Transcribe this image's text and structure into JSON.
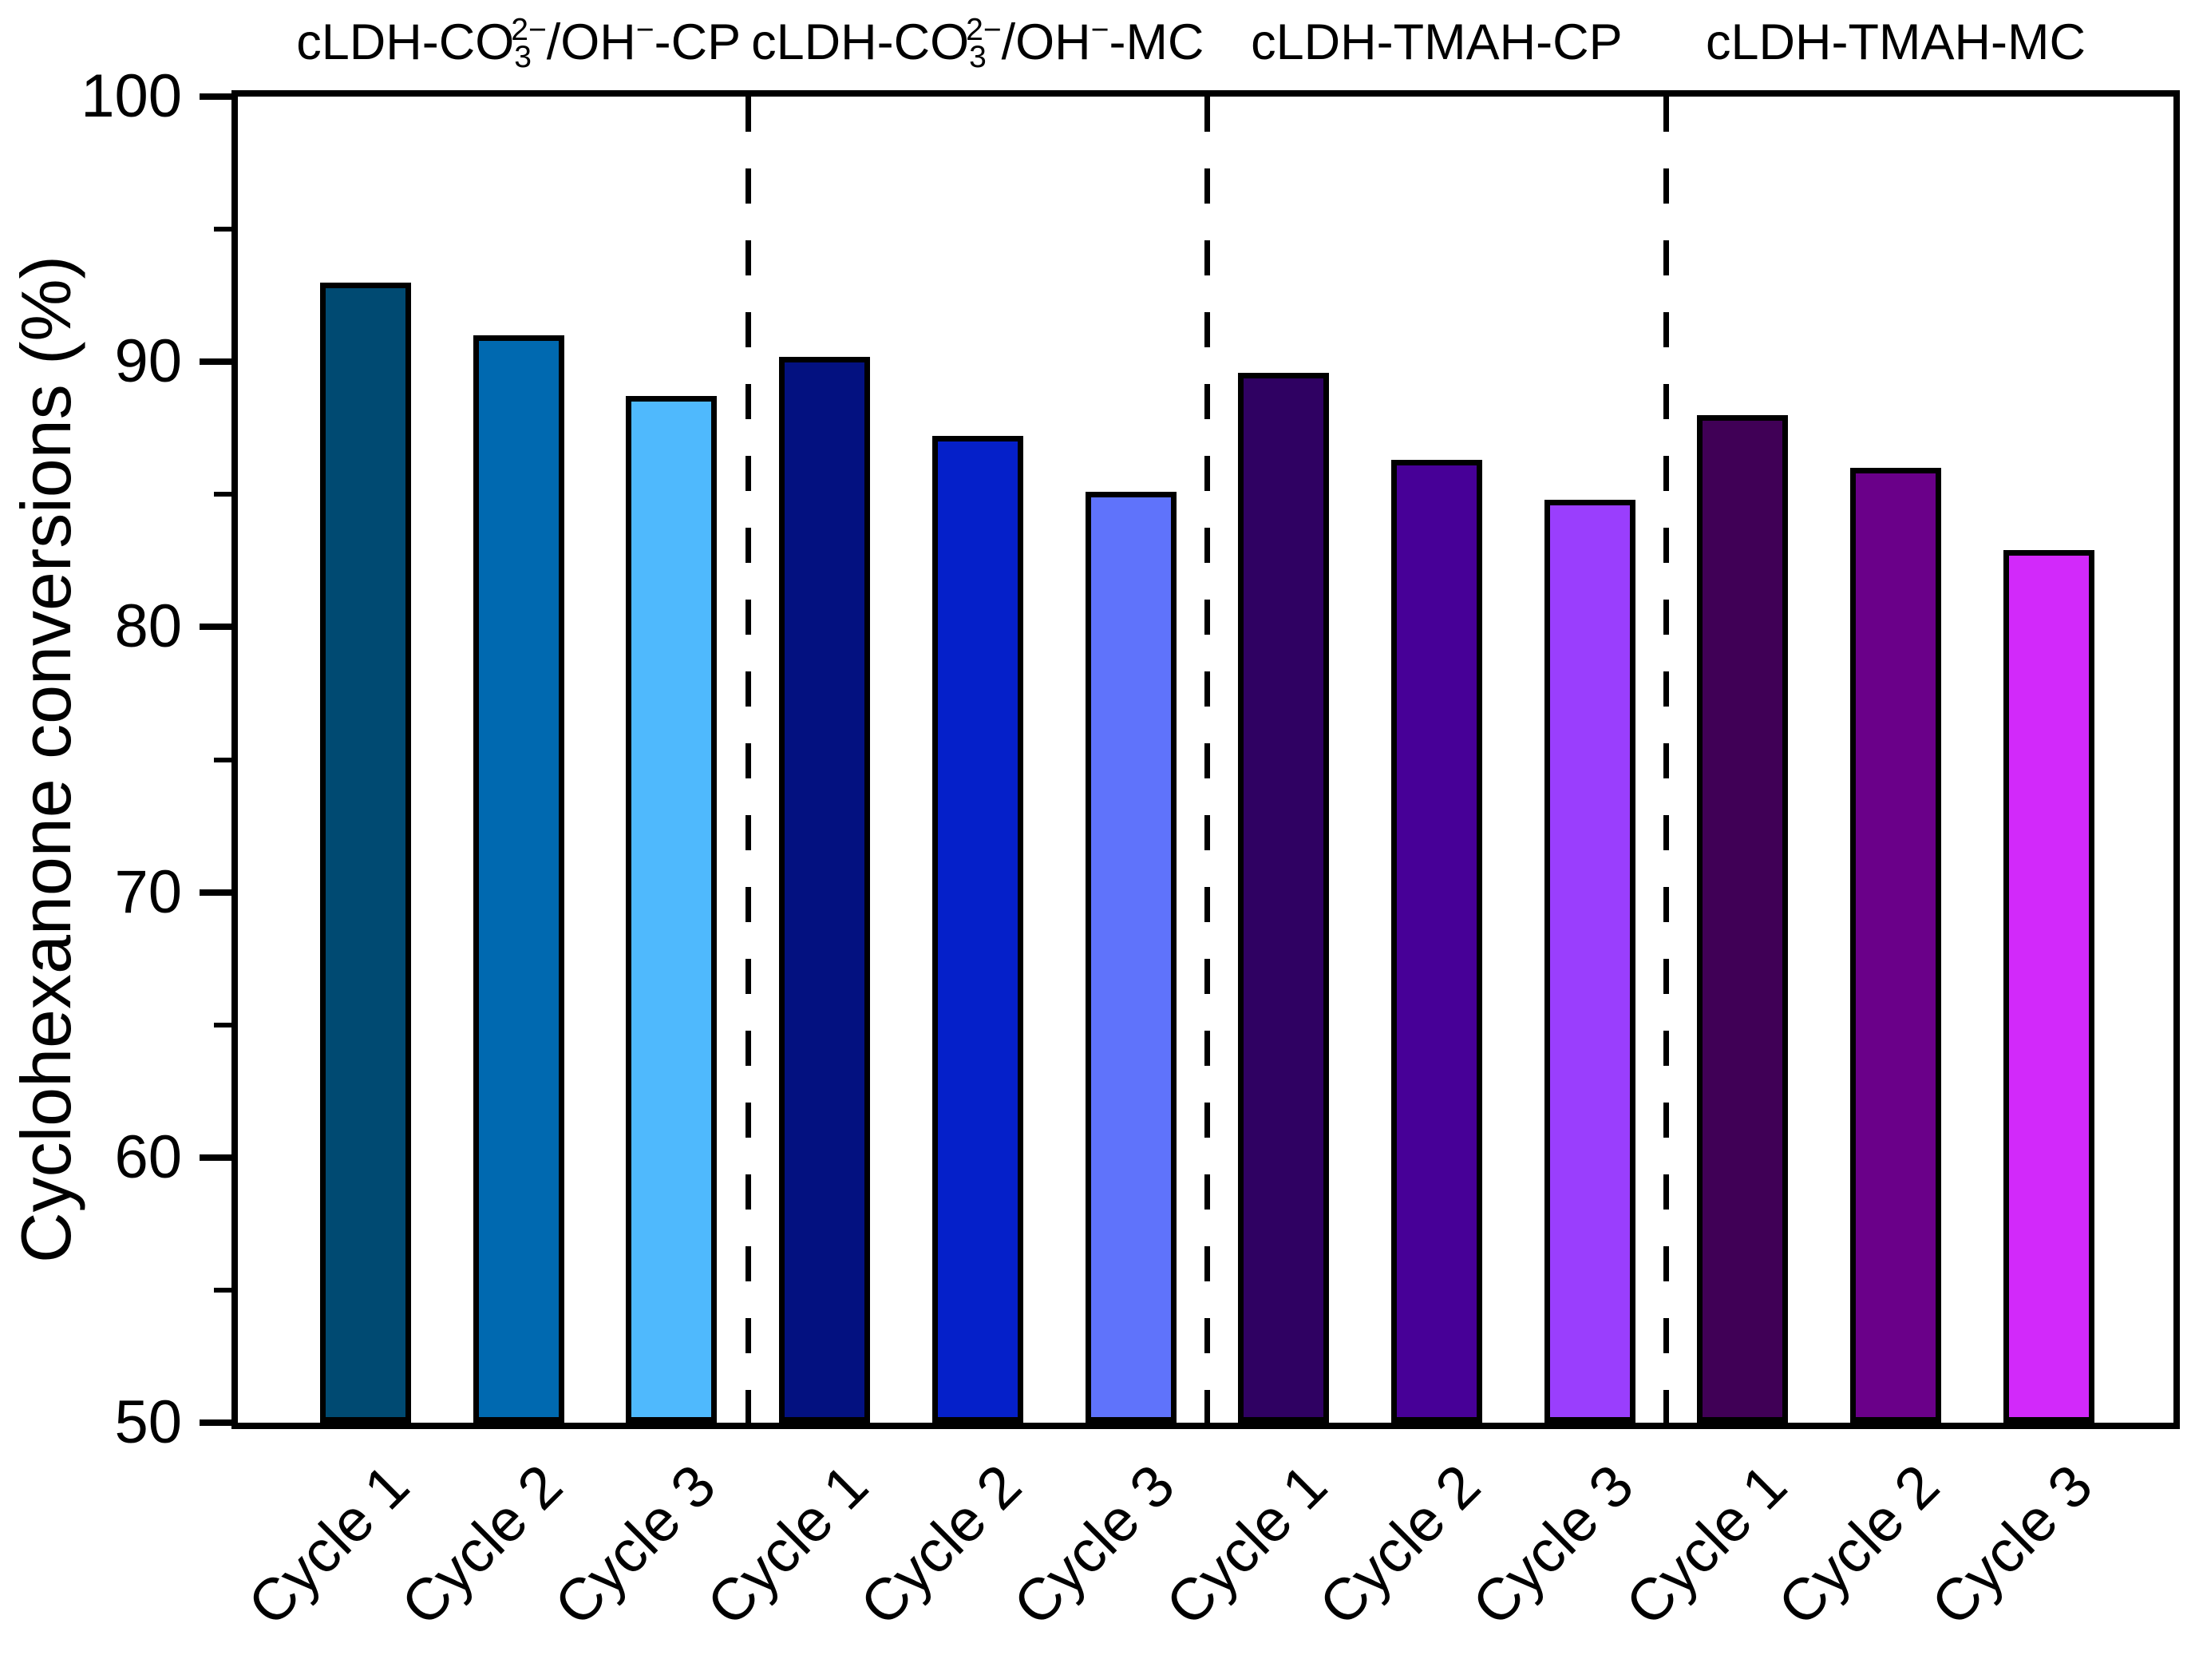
{
  "chart_data": {
    "type": "bar",
    "title": "",
    "xlabel": "",
    "ylabel": "Cyclohexanone conversions (%)",
    "ylim": [
      50,
      100
    ],
    "y_major_ticks": [
      50,
      60,
      70,
      80,
      90,
      100
    ],
    "y_minor_ticks": [
      55,
      65,
      75,
      85,
      95
    ],
    "grid": false,
    "legend": "none",
    "bar_edge_color": "#000000",
    "separator": {
      "style": "dashed",
      "color": "#000000"
    },
    "groups": [
      {
        "label": "cLDH-CO₃²⁻/OH⁻-CP",
        "label_parts": [
          [
            "t",
            "cLDH-CO"
          ],
          [
            "sub",
            "3"
          ],
          [
            "sups",
            "2−"
          ],
          [
            "t",
            "/OH"
          ],
          [
            "sup",
            "−"
          ],
          [
            "t",
            "-CP"
          ]
        ],
        "bars": [
          {
            "category": "Cycle 1",
            "value": 93.0,
            "color": "#004A72"
          },
          {
            "category": "Cycle 2",
            "value": 91.0,
            "color": "#0069B0"
          },
          {
            "category": "Cycle 3",
            "value": 88.7,
            "color": "#4FB9FD"
          }
        ]
      },
      {
        "label": "cLDH-CO₃²⁻/OH⁻-MC",
        "label_parts": [
          [
            "t",
            "cLDH-CO"
          ],
          [
            "sub",
            "3"
          ],
          [
            "sups",
            "2−"
          ],
          [
            "t",
            "/OH"
          ],
          [
            "sup",
            "−"
          ],
          [
            "t",
            "-MC"
          ]
        ],
        "bars": [
          {
            "category": "Cycle 1",
            "value": 90.2,
            "color": "#031180"
          },
          {
            "category": "Cycle 2",
            "value": 87.2,
            "color": "#0520C9"
          },
          {
            "category": "Cycle 3",
            "value": 85.1,
            "color": "#5F73FB"
          }
        ]
      },
      {
        "label": "cLDH-TMAH-CP",
        "label_parts": [
          [
            "t",
            "cLDH-TMAH-CP"
          ]
        ],
        "bars": [
          {
            "category": "Cycle 1",
            "value": 89.6,
            "color": "#2F0162"
          },
          {
            "category": "Cycle 2",
            "value": 86.3,
            "color": "#470097"
          },
          {
            "category": "Cycle 3",
            "value": 84.8,
            "color": "#9A3EFD"
          }
        ]
      },
      {
        "label": "cLDH-TMAH-MC",
        "label_parts": [
          [
            "t",
            "cLDH-TMAH-MC"
          ]
        ],
        "bars": [
          {
            "category": "Cycle 1",
            "value": 88.0,
            "color": "#400056"
          },
          {
            "category": "Cycle 2",
            "value": 86.0,
            "color": "#6A0089"
          },
          {
            "category": "Cycle 3",
            "value": 82.9,
            "color": "#D229FA"
          }
        ]
      }
    ]
  },
  "colors": {
    "axis": "#000000",
    "background": "#FFFFFF"
  }
}
